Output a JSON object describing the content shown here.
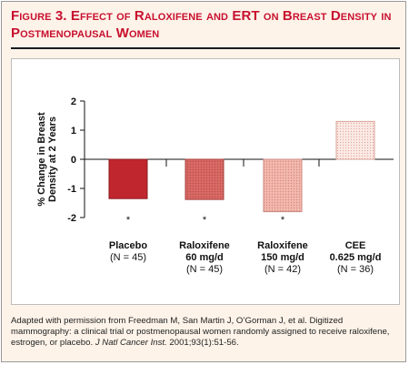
{
  "header": {
    "title": "Figure 3. Effect of Raloxifene and ERT on Breast Density in Postmenopausal Women"
  },
  "caption": {
    "part1": "Adapted with permission from Freedman M, San Martin J, O’Gorman J, et al. Digitized mammography: a clinical trial or postmenopausal women randomly assigned to receive raloxifene, estrogen, or placebo. ",
    "journal": "J Natl Cancer Inst.",
    "part2": " 2001;93(1):51-56."
  },
  "chart_data": {
    "type": "bar",
    "ylabel": "% Change in Breast Density at 2 Years",
    "ylabel_lines": [
      "% Change in Breast",
      "Density at 2 Years"
    ],
    "ylim": [
      -2,
      2
    ],
    "yticks": [
      2,
      1,
      0,
      -1,
      -2
    ],
    "grid": false,
    "categories": [
      {
        "lines": [
          "Placebo"
        ],
        "n": "(N = 45)",
        "marker": "*"
      },
      {
        "lines": [
          "Raloxifene",
          "60 mg/d"
        ],
        "n": "(N = 45)",
        "marker": "*"
      },
      {
        "lines": [
          "Raloxifene",
          "150 mg/d"
        ],
        "n": "(N = 42)",
        "marker": "*"
      },
      {
        "lines": [
          "CEE",
          "0.625 mg/d"
        ],
        "n": "(N = 36)",
        "marker": ""
      }
    ],
    "values": [
      -1.35,
      -1.38,
      -1.8,
      1.3
    ],
    "colors": [
      "#c0262d",
      "#d96a66",
      "#f2b8ae",
      "#f9e3dd"
    ],
    "patterns": [
      "solid",
      "dots",
      "dots",
      "dots"
    ]
  }
}
